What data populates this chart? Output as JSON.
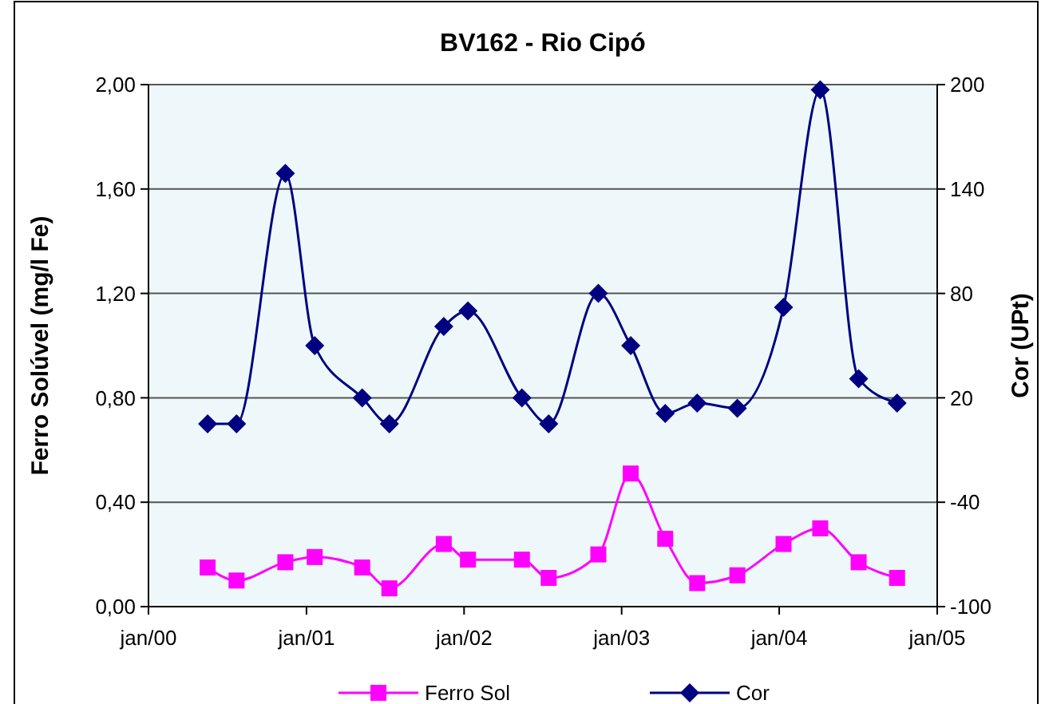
{
  "chart_data": {
    "type": "line",
    "title": "BV162 - Rio Cipó",
    "ylabel": "Ferro Solúvel (mg/l Fe)",
    "y2label": "Cor (UPt)",
    "x": [
      "2000-05-17",
      "2000-07-23",
      "2000-11-13",
      "2001-01-20",
      "2001-05-10",
      "2001-07-12",
      "2001-11-15",
      "2002-01-10",
      "2002-05-15",
      "2002-07-16",
      "2002-11-08",
      "2003-01-22",
      "2003-04-12",
      "2003-06-25",
      "2003-09-26",
      "2004-01-11",
      "2004-04-05",
      "2004-07-03",
      "2004-09-30"
    ],
    "series": [
      {
        "name": "Ferro Sol",
        "color": "#ff00ff",
        "marker": "square",
        "values": [
          0.15,
          0.1,
          0.17,
          0.19,
          0.15,
          0.07,
          0.24,
          0.18,
          0.18,
          0.11,
          0.2,
          0.51,
          0.26,
          0.09,
          0.12,
          0.24,
          0.3,
          0.17,
          0.11
        ]
      },
      {
        "name": "Cor",
        "color": "#000080",
        "marker": "diamond",
        "axis": "y2",
        "values": [
          5,
          5,
          149,
          50,
          20,
          5,
          61,
          70,
          20,
          5,
          80,
          50,
          11,
          17,
          14,
          72,
          197,
          31,
          17
        ]
      }
    ],
    "xlim": [
      "2000-01-01",
      "2005-01-01"
    ],
    "xticks": [
      {
        "value": "2000-01-01",
        "label": "jan/00"
      },
      {
        "value": "2001-01-01",
        "label": "jan/01"
      },
      {
        "value": "2002-01-01",
        "label": "jan/02"
      },
      {
        "value": "2003-01-01",
        "label": "jan/03"
      },
      {
        "value": "2004-01-01",
        "label": "jan/04"
      },
      {
        "value": "2005-01-01",
        "label": "jan/05"
      }
    ],
    "ylim": [
      0,
      2
    ],
    "yticks": [
      {
        "value": 0,
        "label": "0,00"
      },
      {
        "value": 0.4,
        "label": "0,40"
      },
      {
        "value": 0.8,
        "label": "0,80"
      },
      {
        "value": 1.2,
        "label": "1,20"
      },
      {
        "value": 1.6,
        "label": "1,60"
      },
      {
        "value": 2,
        "label": "2,00"
      }
    ],
    "y2lim": [
      -100,
      200
    ],
    "y2ticks": [
      -100,
      -40,
      20,
      80,
      140,
      200
    ],
    "grid": "y",
    "legend": "bottom",
    "line_style": "solid"
  }
}
